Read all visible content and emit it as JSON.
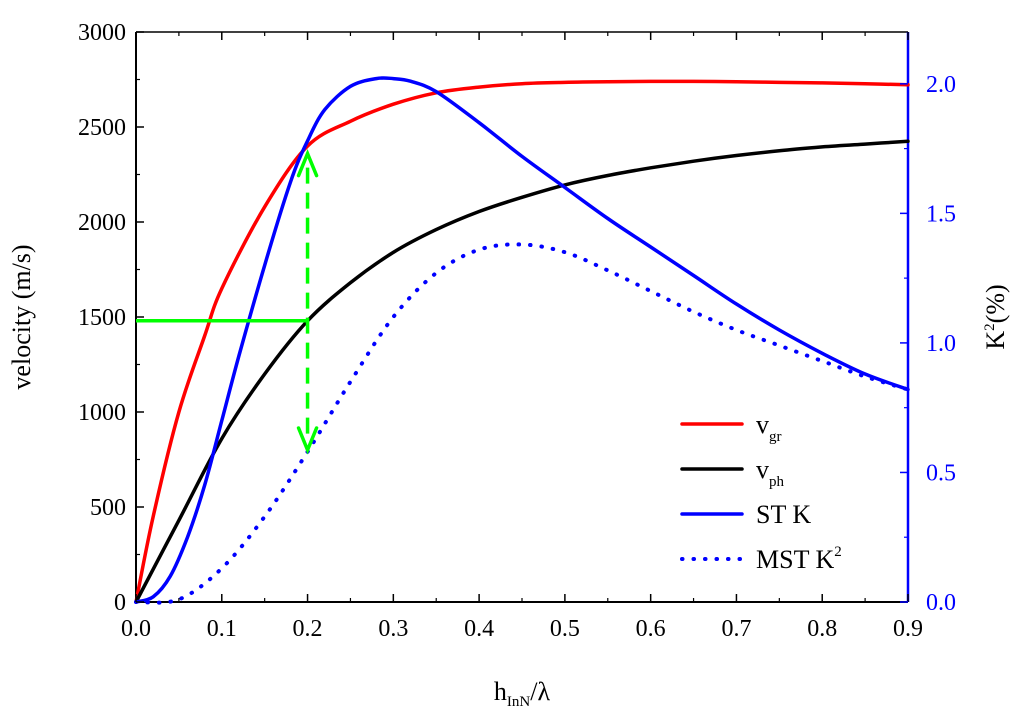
{
  "chart_data": {
    "type": "line",
    "x_axis": {
      "label_main": "h",
      "label_sub": "InN",
      "label_suffix": "/λ",
      "range": [
        0,
        0.9
      ],
      "ticks": [
        "0.0",
        "0.1",
        "0.2",
        "0.3",
        "0.4",
        "0.5",
        "0.6",
        "0.7",
        "0.8",
        "0.9"
      ]
    },
    "y_left": {
      "label": "velocity (m/s)",
      "range": [
        0,
        3000
      ],
      "ticks": [
        "0",
        "500",
        "1000",
        "1500",
        "2000",
        "2500",
        "3000"
      ]
    },
    "y_right": {
      "label_main": "K",
      "label_sup": "2",
      "label_suffix": "(%)",
      "range": [
        0,
        2.2
      ],
      "ticks": [
        "0.0",
        "0.5",
        "1.0",
        "1.5",
        "2.0"
      ],
      "color": "#0000ff"
    },
    "series": [
      {
        "name_main": "v",
        "name_sub": "gr",
        "name_sup": "",
        "color": "#ff0000",
        "style": "solid",
        "axis": "left",
        "x": [
          0,
          0.02,
          0.05,
          0.08,
          0.1,
          0.15,
          0.2,
          0.25,
          0.3,
          0.35,
          0.4,
          0.45,
          0.5,
          0.55,
          0.6,
          0.65,
          0.7,
          0.75,
          0.8,
          0.85,
          0.9
        ],
        "y": [
          0,
          450,
          1000,
          1400,
          1650,
          2080,
          2400,
          2530,
          2620,
          2680,
          2710,
          2728,
          2735,
          2738,
          2740,
          2740,
          2738,
          2735,
          2732,
          2728,
          2722
        ]
      },
      {
        "name_main": "v",
        "name_sub": "ph",
        "name_sup": "",
        "color": "#000000",
        "style": "solid",
        "axis": "left",
        "x": [
          0,
          0.05,
          0.1,
          0.15,
          0.2,
          0.25,
          0.3,
          0.35,
          0.4,
          0.45,
          0.5,
          0.55,
          0.6,
          0.65,
          0.7,
          0.75,
          0.8,
          0.85,
          0.9
        ],
        "y": [
          0,
          430,
          860,
          1200,
          1480,
          1680,
          1840,
          1960,
          2055,
          2130,
          2195,
          2245,
          2285,
          2320,
          2350,
          2375,
          2395,
          2410,
          2425
        ]
      },
      {
        "name_main": "ST K",
        "name_sub": "",
        "name_sup": "",
        "color": "#0000ff",
        "style": "solid",
        "axis": "right",
        "x": [
          0,
          0.02,
          0.04,
          0.06,
          0.08,
          0.1,
          0.12,
          0.15,
          0.18,
          0.2,
          0.22,
          0.25,
          0.28,
          0.3,
          0.32,
          0.35,
          0.4,
          0.45,
          0.5,
          0.55,
          0.6,
          0.65,
          0.7,
          0.75,
          0.8,
          0.85,
          0.9
        ],
        "y": [
          0,
          0.02,
          0.1,
          0.25,
          0.45,
          0.7,
          0.95,
          1.3,
          1.62,
          1.78,
          1.9,
          1.99,
          2.02,
          2.02,
          2.01,
          1.97,
          1.85,
          1.72,
          1.6,
          1.48,
          1.37,
          1.26,
          1.15,
          1.05,
          0.96,
          0.88,
          0.82
        ]
      },
      {
        "name_main": "MST K",
        "name_sub": "",
        "name_sup": "2",
        "color": "#0000ff",
        "style": "dotted",
        "axis": "right",
        "x": [
          0,
          0.05,
          0.1,
          0.15,
          0.2,
          0.25,
          0.3,
          0.35,
          0.4,
          0.45,
          0.5,
          0.55,
          0.6,
          0.65,
          0.7,
          0.75,
          0.8,
          0.85,
          0.9
        ],
        "y": [
          0,
          0.01,
          0.13,
          0.33,
          0.58,
          0.85,
          1.1,
          1.27,
          1.36,
          1.38,
          1.35,
          1.28,
          1.2,
          1.12,
          1.05,
          0.99,
          0.93,
          0.87,
          0.82
        ]
      }
    ],
    "annotations": [
      {
        "kind": "horizontal-line",
        "color": "#00ff00",
        "style": "solid",
        "axis": "left",
        "x_from": 0,
        "x_to": 0.2,
        "y": 1480
      },
      {
        "kind": "double-arrow",
        "color": "#00ff00",
        "style": "dashed",
        "axis": "left",
        "x": 0.2,
        "y_from": 2360,
        "y_to": 800
      }
    ],
    "legend_position": "bottom-right",
    "grid": false
  }
}
